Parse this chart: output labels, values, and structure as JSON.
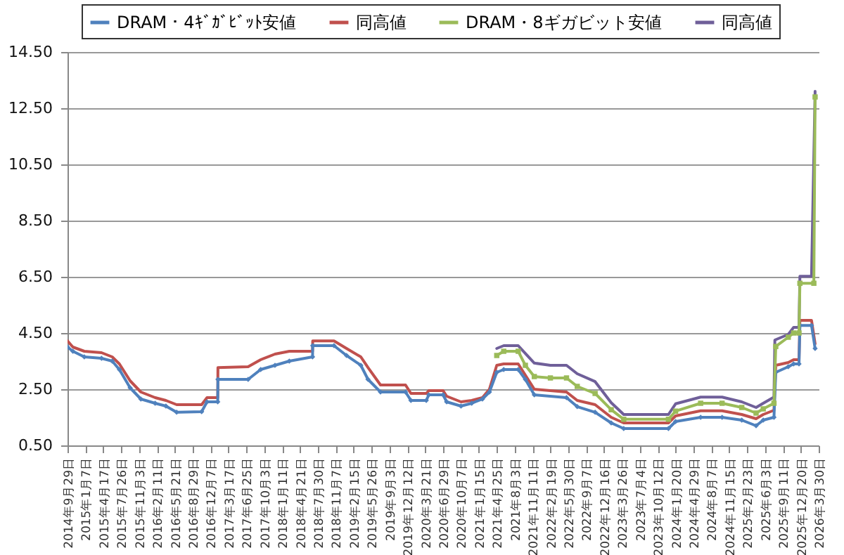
{
  "chart_data": {
    "type": "line",
    "legend": "top",
    "grid": "y",
    "ylim": [
      0.5,
      14.5
    ],
    "yticks": [
      {
        "value": 0.5,
        "label": "0.50"
      },
      {
        "value": 2.5,
        "label": "2.50"
      },
      {
        "value": 4.5,
        "label": "4.50"
      },
      {
        "value": 6.5,
        "label": "6.50"
      },
      {
        "value": 8.5,
        "label": "8.50"
      },
      {
        "value": 10.5,
        "label": "10.50"
      },
      {
        "value": 12.5,
        "label": "12.50"
      },
      {
        "value": 14.5,
        "label": "14.50"
      }
    ],
    "xlim": [
      "2014-09-29",
      "2026-03-30"
    ],
    "xticks": [
      {
        "value": "2014-09-29",
        "label": "2014年9月29日"
      },
      {
        "value": "2015-01-07",
        "label": "2015年1月7日"
      },
      {
        "value": "2015-04-17",
        "label": "2015年4月17日"
      },
      {
        "value": "2015-07-26",
        "label": "2015年7月26日"
      },
      {
        "value": "2015-11-03",
        "label": "2015年11月3日"
      },
      {
        "value": "2016-02-11",
        "label": "2016年2月11日"
      },
      {
        "value": "2016-05-21",
        "label": "2016年5月21日"
      },
      {
        "value": "2016-08-29",
        "label": "2016年8月29日"
      },
      {
        "value": "2016-12-07",
        "label": "2016年12月7日"
      },
      {
        "value": "2017-03-17",
        "label": "2017年3月17日"
      },
      {
        "value": "2017-06-25",
        "label": "2017年6月25日"
      },
      {
        "value": "2017-10-03",
        "label": "2017年10月3日"
      },
      {
        "value": "2018-01-11",
        "label": "2018年1月11日"
      },
      {
        "value": "2018-04-21",
        "label": "2018年4月21日"
      },
      {
        "value": "2018-07-30",
        "label": "2018年7月30日"
      },
      {
        "value": "2018-11-07",
        "label": "2018年11月7日"
      },
      {
        "value": "2019-02-15",
        "label": "2019年2月15日"
      },
      {
        "value": "2019-05-26",
        "label": "2019年5月26日"
      },
      {
        "value": "2019-09-03",
        "label": "2019年9月3日"
      },
      {
        "value": "2019-12-12",
        "label": "2019年12月12日"
      },
      {
        "value": "2020-03-21",
        "label": "2020年3月21日"
      },
      {
        "value": "2020-06-29",
        "label": "2020年6月29日"
      },
      {
        "value": "2020-10-07",
        "label": "2020年10月7日"
      },
      {
        "value": "2021-01-15",
        "label": "2021年1月15日"
      },
      {
        "value": "2021-04-25",
        "label": "2021年4月25日"
      },
      {
        "value": "2021-08-03",
        "label": "2021年8月3日"
      },
      {
        "value": "2021-11-11",
        "label": "2021年11月11日"
      },
      {
        "value": "2022-02-19",
        "label": "2022年2月19日"
      },
      {
        "value": "2022-05-30",
        "label": "2022年5月30日"
      },
      {
        "value": "2022-09-07",
        "label": "2022年9月7日"
      },
      {
        "value": "2022-12-16",
        "label": "2022年12月16日"
      },
      {
        "value": "2023-03-26",
        "label": "2023年3月26日"
      },
      {
        "value": "2023-07-04",
        "label": "2023年7月4日"
      },
      {
        "value": "2023-10-12",
        "label": "2023年10月12日"
      },
      {
        "value": "2024-01-20",
        "label": "2024年1月20日"
      },
      {
        "value": "2024-04-29",
        "label": "2024年4月29日"
      },
      {
        "value": "2024-08-07",
        "label": "2024年8月7日"
      },
      {
        "value": "2024-11-15",
        "label": "2024年11月15日"
      },
      {
        "value": "2025-02-23",
        "label": "2025年2月23日"
      },
      {
        "value": "2025-06-03",
        "label": "2025年6月3日"
      },
      {
        "value": "2025-09-11",
        "label": "2025年9月11日"
      },
      {
        "value": "2025-12-20",
        "label": "2025年12月20日"
      },
      {
        "value": "2026-03-30",
        "label": "2026年3月30日"
      }
    ],
    "series": [
      {
        "name": "DRAM・4ｷﾞｶﾞﾋﾞｯﾄ安値",
        "color": "#4f81bd",
        "marker": "diamond",
        "x": [
          "2014-09-29",
          "2014-10-29",
          "2015-01-01",
          "2015-04-07",
          "2015-06-06",
          "2015-07-16",
          "2015-09-14",
          "2015-11-13",
          "2016-02-01",
          "2016-04-01",
          "2016-05-31",
          "2016-10-18",
          "2016-11-17",
          "2017-01-16",
          "2017-01-17",
          "2017-07-05",
          "2017-09-13",
          "2017-12-02",
          "2018-02-20",
          "2018-06-30",
          "2018-07-01",
          "2018-10-28",
          "2019-01-06",
          "2019-03-27",
          "2019-05-06",
          "2019-07-15",
          "2019-12-02",
          "2020-01-01",
          "2020-03-27",
          "2020-04-10",
          "2020-06-29",
          "2020-07-19",
          "2020-10-07",
          "2020-12-06",
          "2021-02-04",
          "2021-03-15",
          "2021-04-25",
          "2021-06-03",
          "2021-08-23",
          "2021-10-02",
          "2021-11-21",
          "2022-05-20",
          "2022-07-19",
          "2022-10-27",
          "2023-01-25",
          "2023-04-05",
          "2023-12-11",
          "2024-01-20",
          "2024-06-08",
          "2024-10-06",
          "2025-01-24",
          "2025-04-14",
          "2025-05-24",
          "2025-07-23",
          "2025-08-02",
          "2025-10-11",
          "2025-11-10",
          "2025-12-10",
          "2025-12-15",
          "2026-02-18",
          "2026-03-10"
        ],
        "values": [
          4.0,
          3.85,
          3.65,
          3.6,
          3.5,
          3.2,
          2.55,
          2.15,
          2.0,
          1.9,
          1.68,
          1.7,
          2.05,
          2.05,
          2.85,
          2.85,
          3.2,
          3.35,
          3.5,
          3.65,
          4.05,
          4.05,
          3.7,
          3.35,
          2.85,
          2.4,
          2.4,
          2.1,
          2.1,
          2.3,
          2.3,
          2.05,
          1.9,
          2.0,
          2.15,
          2.4,
          3.1,
          3.2,
          3.2,
          2.85,
          2.3,
          2.2,
          1.88,
          1.68,
          1.3,
          1.1,
          1.1,
          1.35,
          1.5,
          1.5,
          1.4,
          1.2,
          1.4,
          1.5,
          3.1,
          3.3,
          3.4,
          3.4,
          4.77,
          4.77,
          3.95
        ]
      },
      {
        "name": "同高値",
        "color": "#c0504d",
        "marker": "none",
        "x": [
          "2014-09-29",
          "2014-10-29",
          "2015-01-01",
          "2015-04-07",
          "2015-06-06",
          "2015-07-16",
          "2015-09-14",
          "2015-11-13",
          "2016-02-01",
          "2016-04-01",
          "2016-05-31",
          "2016-10-18",
          "2016-11-17",
          "2017-01-16",
          "2017-01-17",
          "2017-07-05",
          "2017-09-13",
          "2017-12-02",
          "2018-02-20",
          "2018-06-30",
          "2018-07-01",
          "2018-10-28",
          "2019-01-06",
          "2019-03-27",
          "2019-05-06",
          "2019-07-15",
          "2019-12-02",
          "2020-01-01",
          "2020-03-27",
          "2020-04-10",
          "2020-06-29",
          "2020-07-19",
          "2020-10-07",
          "2020-12-06",
          "2021-02-04",
          "2021-03-15",
          "2021-04-25",
          "2021-06-03",
          "2021-08-23",
          "2021-10-02",
          "2021-11-21",
          "2022-05-20",
          "2022-07-19",
          "2022-10-27",
          "2023-01-25",
          "2023-04-05",
          "2023-12-11",
          "2024-01-20",
          "2024-06-08",
          "2024-10-06",
          "2025-01-24",
          "2025-04-14",
          "2025-05-24",
          "2025-07-23",
          "2025-08-02",
          "2025-10-11",
          "2025-11-10",
          "2025-12-10",
          "2025-12-15",
          "2026-02-18",
          "2026-03-10"
        ],
        "values": [
          4.22,
          4.0,
          3.85,
          3.8,
          3.65,
          3.4,
          2.8,
          2.4,
          2.2,
          2.1,
          1.95,
          1.95,
          2.2,
          2.2,
          3.27,
          3.3,
          3.55,
          3.75,
          3.85,
          3.85,
          4.22,
          4.22,
          3.95,
          3.65,
          3.27,
          2.65,
          2.65,
          2.35,
          2.35,
          2.45,
          2.45,
          2.25,
          2.05,
          2.1,
          2.2,
          2.5,
          3.35,
          3.4,
          3.4,
          3.0,
          2.5,
          2.4,
          2.1,
          1.95,
          1.5,
          1.3,
          1.3,
          1.55,
          1.73,
          1.73,
          1.6,
          1.45,
          1.6,
          1.75,
          3.35,
          3.45,
          3.55,
          3.55,
          4.95,
          4.95,
          4.12
        ]
      },
      {
        "name": "DRAM・8ギガビット安値",
        "color": "#9bbb59",
        "marker": "square",
        "x": [
          "2021-04-25",
          "2021-06-03",
          "2021-08-23",
          "2021-10-02",
          "2021-11-21",
          "2022-02-19",
          "2022-05-20",
          "2022-07-19",
          "2022-10-27",
          "2023-01-25",
          "2023-04-05",
          "2023-12-11",
          "2024-01-20",
          "2024-06-08",
          "2024-10-06",
          "2025-01-24",
          "2025-04-14",
          "2025-05-24",
          "2025-07-23",
          "2025-08-02",
          "2025-10-11",
          "2025-11-10",
          "2025-12-10",
          "2025-12-15",
          "2026-03-03",
          "2026-03-10"
        ],
        "values": [
          3.7,
          3.85,
          3.85,
          3.35,
          2.95,
          2.9,
          2.9,
          2.6,
          2.35,
          1.77,
          1.43,
          1.43,
          1.72,
          2.0,
          2.0,
          1.85,
          1.65,
          1.8,
          2.0,
          4.02,
          4.35,
          4.5,
          4.5,
          6.27,
          6.27,
          12.9
        ]
      },
      {
        "name": "同高値",
        "color": "#6f5f99",
        "marker": "none",
        "x": [
          "2021-04-25",
          "2021-06-03",
          "2021-08-23",
          "2021-10-02",
          "2021-11-21",
          "2022-02-19",
          "2022-05-20",
          "2022-07-19",
          "2022-10-27",
          "2023-01-25",
          "2023-04-05",
          "2023-12-11",
          "2024-01-20",
          "2024-06-08",
          "2024-10-06",
          "2025-01-24",
          "2025-04-14",
          "2025-05-24",
          "2025-07-23",
          "2025-07-28",
          "2025-10-11",
          "2025-11-10",
          "2025-12-10",
          "2025-12-15",
          "2026-02-18",
          "2026-03-10"
        ],
        "values": [
          3.95,
          4.05,
          4.05,
          3.77,
          3.43,
          3.35,
          3.35,
          3.05,
          2.77,
          2.02,
          1.6,
          1.6,
          1.98,
          2.22,
          2.22,
          2.05,
          1.85,
          2.0,
          2.22,
          4.25,
          4.45,
          4.7,
          4.7,
          6.52,
          6.52,
          13.1
        ]
      }
    ]
  }
}
